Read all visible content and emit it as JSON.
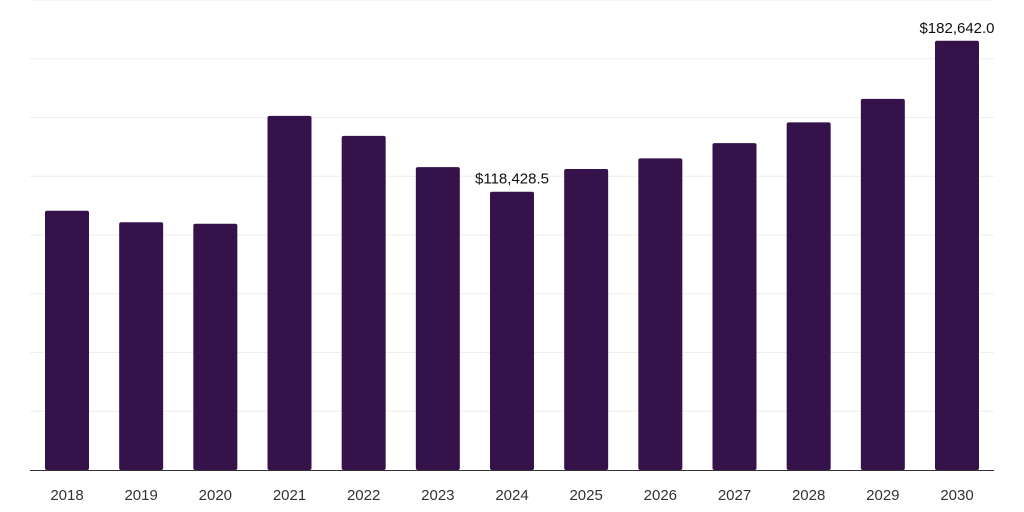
{
  "chart_data": {
    "type": "bar",
    "categories": [
      "2018",
      "2019",
      "2020",
      "2021",
      "2022",
      "2023",
      "2024",
      "2025",
      "2026",
      "2027",
      "2028",
      "2029",
      "2030"
    ],
    "values": [
      110300,
      105400,
      104800,
      150700,
      142200,
      128900,
      118428.5,
      128100,
      132600,
      139100,
      147900,
      157900,
      182642.0
    ],
    "data_labels": [
      {
        "index": 6,
        "text": "$118,428.5"
      },
      {
        "index": 12,
        "text": "$182,642.0"
      }
    ],
    "title": "",
    "xlabel": "",
    "ylabel": "",
    "ylim": [
      0,
      200000
    ],
    "y_tick_labels_visible": false,
    "grid": "horizontal",
    "legend": "none",
    "colors": {
      "bar": "#36124a",
      "grid": "#eeeeee",
      "axis": "#333333",
      "background": "#ffffff"
    }
  }
}
